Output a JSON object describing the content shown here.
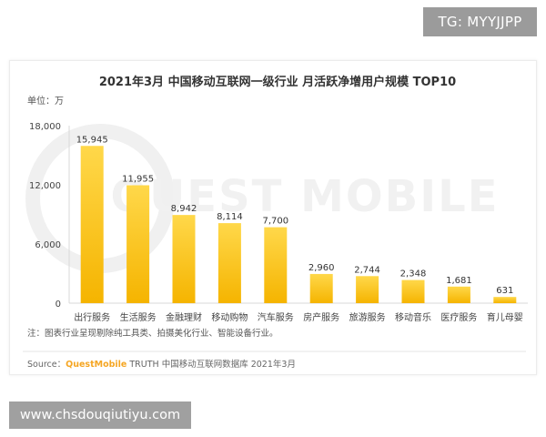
{
  "badges": {
    "top_right": "TG: MYYJJPP",
    "bottom_left": "www.chsdouqiutiyu.com"
  },
  "watermark": "QUEST MOBILE",
  "chart_data": {
    "type": "bar",
    "title": "2021年3月 中国移动互联网一级行业 月活跃净增用户规模 TOP10",
    "unit_label": "单位：万",
    "categories": [
      "出行服务",
      "生活服务",
      "金融理财",
      "移动购物",
      "汽车服务",
      "房产服务",
      "旅游服务",
      "移动音乐",
      "医疗服务",
      "育儿母婴"
    ],
    "values": [
      15945,
      11955,
      8942,
      8114,
      7700,
      2960,
      2744,
      2348,
      1681,
      631
    ],
    "value_labels": [
      "15,945",
      "11,955",
      "8,942",
      "8,114",
      "7,700",
      "2,960",
      "2,744",
      "2,348",
      "1,681",
      "631"
    ],
    "yticks": [
      0,
      6000,
      12000,
      18000
    ],
    "ytick_labels": [
      "0",
      "6,000",
      "12,000",
      "18,000"
    ],
    "ylim": [
      0,
      18000
    ],
    "grid": false,
    "bar_color_top": "#ffd84a",
    "bar_color_bottom": "#f5b400",
    "note": "注：图表行业呈现剔除纯工具类、拍摄美化行业、智能设备行业。",
    "source_prefix": "Source：",
    "source_brand": "QuestMobile",
    "source_rest": " TRUTH 中国移动互联网数据库 2021年3月",
    "brand_color": "#f5a623"
  }
}
